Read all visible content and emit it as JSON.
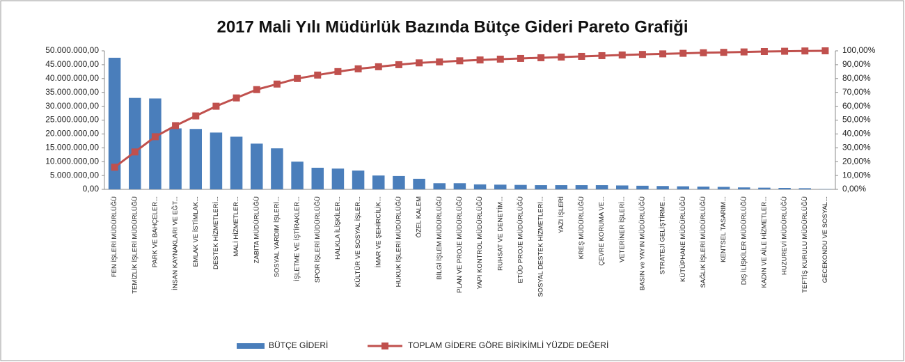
{
  "chart_data": {
    "type": "pareto",
    "title": "2017 Mali Yılı Müdürlük Bazında Bütçe Gideri Pareto Grafiği",
    "categories": [
      "FEN İŞLERİ MÜDÜRLÜĞÜ",
      "TEMİZLİK İŞLERİ MÜDÜRLÜĞÜ",
      "PARK VE BAHÇELER...",
      "İNSAN KAYNAKLARI VE EĞT...",
      "EMLAK VE İSTİMLAK...",
      "DESTEK HİZMETLERİ...",
      "MALİ HİZMETLER...",
      "ZABITA MÜDÜRLÜĞÜ",
      "SOSYAL YARDIM İŞLERİ...",
      "İŞLETME VE İŞTİRAKLER...",
      "SPOR İŞLERİ MÜDÜRLÜĞÜ",
      "HALKLA İLİŞKİLER...",
      "KÜLTÜR VE SOSYAL İŞLER...",
      "İMAR VE ŞEHİRCİLİK...",
      "HUKUK İŞLERİ MÜDÜRLÜĞÜ",
      "ÖZEL KALEM",
      "BİLGİ İŞLEM MÜDÜRLÜĞÜ",
      "PLAN VE PROJE MÜDÜRLÜĞÜ",
      "YAPI KONTROL MÜDÜRLÜĞÜ",
      "RUHSAT VE DENETİM...",
      "ETÜD PROJE MÜDÜRLÜĞÜ",
      "SOSYAL DESTEK HİZMETLERİ...",
      "YAZI İŞLERİ",
      "KREŞ MÜDÜRLÜĞÜ",
      "ÇEVRE KORUMA VE...",
      "VETERİNER İŞLERİ...",
      "BASIN ve YAYIN MÜDÜRLÜĞÜ",
      "STRATEJİ GELİŞTİRME...",
      "KÜTÜPHANE MÜDÜRLÜĞÜ",
      "SAĞLIK İŞLERİ MÜDÜRLÜĞÜ",
      "KENTSEL TASARIM...",
      "DIŞ İLİŞKİLER MÜDÜRLÜĞÜ",
      "KADIN VE AİLE HİZMETLER...",
      "HUZUREVİ MÜDÜRLÜĞÜ",
      "TEFTİŞ KURULU MÜDÜRLÜĞÜ",
      "GECEKONDU VE SOSYAL..."
    ],
    "series": [
      {
        "name": "BÜTÇE GİDERİ",
        "color": "#4a7ebb",
        "values": [
          47500000,
          33000000,
          32800000,
          22000000,
          21800000,
          20500000,
          19000000,
          16500000,
          14800000,
          10000000,
          7800000,
          7500000,
          6800000,
          5000000,
          4800000,
          3800000,
          2200000,
          2200000,
          1800000,
          1700000,
          1600000,
          1500000,
          1500000,
          1500000,
          1500000,
          1400000,
          1300000,
          1200000,
          1100000,
          1000000,
          900000,
          700000,
          600000,
          500000,
          400000,
          100000
        ]
      },
      {
        "name": "TOPLAM GİDERE GÖRE BİRİKİMLİ YÜZDE DEĞERİ",
        "color": "#c0504d",
        "axis": "y2",
        "values": [
          16,
          27,
          38,
          46,
          53,
          60,
          66,
          72,
          76,
          80,
          82.5,
          85,
          87,
          88.5,
          90,
          91.3,
          92,
          92.8,
          93.4,
          94,
          94.5,
          95,
          95.5,
          96,
          96.5,
          97,
          97.4,
          97.8,
          98.2,
          98.6,
          98.9,
          99.2,
          99.5,
          99.7,
          99.9,
          100
        ]
      }
    ],
    "ylim": [
      0,
      50000000
    ],
    "yticks": [
      {
        "value": 0,
        "label": "0,00"
      },
      {
        "value": 5000000,
        "label": "5.000.000,00"
      },
      {
        "value": 10000000,
        "label": "10.000.000,00"
      },
      {
        "value": 15000000,
        "label": "15.000.000,00"
      },
      {
        "value": 20000000,
        "label": "20.000.000,00"
      },
      {
        "value": 25000000,
        "label": "25.000.000,00"
      },
      {
        "value": 30000000,
        "label": "30.000.000,00"
      },
      {
        "value": 35000000,
        "label": "35.000.000,00"
      },
      {
        "value": 40000000,
        "label": "40.000.000,00"
      },
      {
        "value": 45000000,
        "label": "45.000.000,00"
      },
      {
        "value": 50000000,
        "label": "50.000.000,00"
      }
    ],
    "y2lim": [
      0,
      100
    ],
    "y2ticks": [
      {
        "value": 0,
        "label": "0,00%"
      },
      {
        "value": 10,
        "label": "10,00%"
      },
      {
        "value": 20,
        "label": "20,00%"
      },
      {
        "value": 30,
        "label": "30,00%"
      },
      {
        "value": 40,
        "label": "40,00%"
      },
      {
        "value": 50,
        "label": "50,00%"
      },
      {
        "value": 60,
        "label": "60,00%"
      },
      {
        "value": 70,
        "label": "70,00%"
      },
      {
        "value": 80,
        "label": "80,00%"
      },
      {
        "value": 90,
        "label": "90,00%"
      },
      {
        "value": 100,
        "label": "100,00%"
      }
    ],
    "legend": "bottom"
  }
}
